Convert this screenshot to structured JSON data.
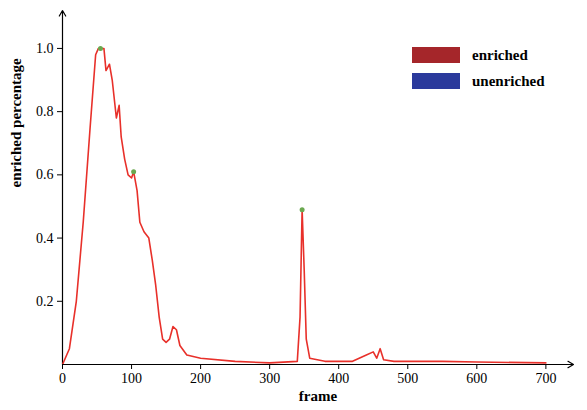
{
  "chart_data": {
    "type": "line",
    "x_label": "frame",
    "y_label": "enriched percentage",
    "x": [
      0,
      10,
      20,
      30,
      40,
      48,
      52,
      60,
      63,
      68,
      72,
      78,
      82,
      85,
      90,
      95,
      100,
      103,
      108,
      112,
      118,
      125,
      130,
      135,
      140,
      145,
      150,
      155,
      160,
      165,
      170,
      180,
      200,
      250,
      300,
      340,
      344,
      347,
      350,
      353,
      358,
      380,
      420,
      440,
      450,
      455,
      460,
      465,
      480,
      550,
      600,
      700
    ],
    "series": [
      {
        "color": "#e8302a",
        "values": [
          0,
          0.05,
          0.2,
          0.45,
          0.75,
          0.98,
          1.0,
          1.0,
          0.93,
          0.95,
          0.9,
          0.78,
          0.82,
          0.72,
          0.65,
          0.6,
          0.59,
          0.61,
          0.55,
          0.45,
          0.42,
          0.4,
          0.33,
          0.25,
          0.15,
          0.08,
          0.07,
          0.08,
          0.12,
          0.11,
          0.06,
          0.03,
          0.02,
          0.01,
          0.005,
          0.01,
          0.15,
          0.49,
          0.3,
          0.08,
          0.02,
          0.01,
          0.01,
          0.03,
          0.04,
          0.02,
          0.05,
          0.015,
          0.01,
          0.01,
          0.008,
          0.005
        ]
      }
    ],
    "peaks": {
      "x": [
        55,
        103,
        347
      ],
      "y": [
        1.0,
        0.61,
        0.49
      ],
      "color": "#6aa84f",
      "marker": "circle"
    },
    "legend": "top-right",
    "legend_items": [
      {
        "name": "enriched",
        "color": "#a5262a"
      },
      {
        "name": "unenriched",
        "color": "#2b3a9c"
      }
    ],
    "xlim": [
      0,
      740
    ],
    "ylim": [
      0,
      1.12
    ],
    "xticks": [
      0,
      100,
      200,
      300,
      400,
      500,
      600,
      700
    ],
    "yticks": [
      0.2,
      0.4,
      0.6,
      0.8,
      {
        "value": 1,
        "label": "1.0"
      }
    ],
    "grid": false
  }
}
